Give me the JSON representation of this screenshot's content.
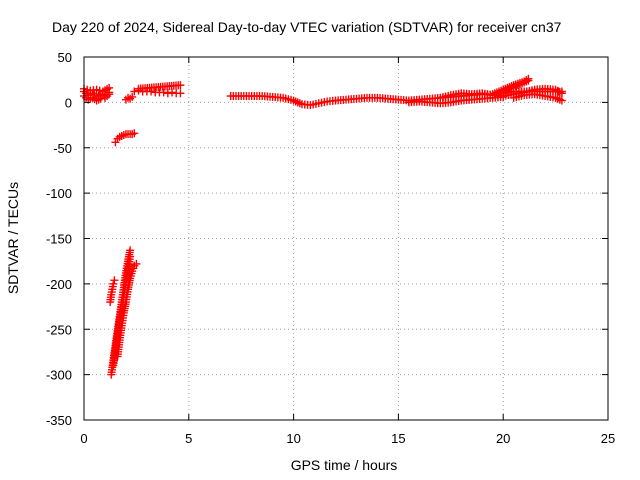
{
  "chart_data": {
    "type": "scatter",
    "title": "Day 220 of 2024, Sidereal Day-to-day VTEC variation (SDTVAR) for receiver cn37",
    "xlabel": "GPS time / hours",
    "ylabel": "SDTVAR / TECUs",
    "xlim": [
      0,
      25
    ],
    "ylim": [
      -350,
      50
    ],
    "xticks": [
      0,
      5,
      10,
      15,
      20,
      25
    ],
    "yticks": [
      -350,
      -300,
      -250,
      -200,
      -150,
      -100,
      -50,
      0,
      50
    ],
    "xtick_labels": [
      "0",
      "5",
      "10",
      "15",
      "20",
      "25"
    ],
    "ytick_labels": [
      "-350",
      "-300",
      "-250",
      "-200",
      "-150",
      "-100",
      "-50",
      "0",
      "50"
    ],
    "grid": true,
    "marker": "plus",
    "colors": {
      "series": "#ff0000",
      "grid": "#a0a0a0",
      "axis": "#000000"
    },
    "segments": [
      {
        "x": [
          0.0,
          0.2,
          0.4,
          0.6,
          0.8,
          1.0,
          1.2
        ],
        "y": [
          12,
          8,
          10,
          6,
          9,
          7,
          11
        ]
      },
      {
        "x": [
          0.0,
          0.2,
          0.4,
          0.6,
          0.8,
          1.0,
          1.2
        ],
        "y": [
          7,
          3,
          5,
          2,
          4,
          5,
          9
        ]
      },
      {
        "x": [
          0.0,
          0.3,
          0.6,
          0.9,
          1.2
        ],
        "y": [
          15,
          13,
          14,
          12,
          16
        ]
      },
      {
        "x": [
          2.0,
          2.1,
          2.2,
          2.3
        ],
        "y": [
          3,
          5,
          4,
          6
        ]
      },
      {
        "x": [
          2.4,
          2.6,
          2.8,
          3.0,
          3.2,
          3.4,
          3.6,
          3.8,
          4.0,
          4.2,
          4.4,
          4.6
        ],
        "y": [
          12,
          13,
          12,
          12,
          12,
          11,
          11,
          11,
          10,
          11,
          10,
          10
        ]
      },
      {
        "x": [
          2.6,
          4.6
        ],
        "y": [
          15,
          19
        ]
      },
      {
        "x": [
          1.5,
          1.6,
          1.7,
          1.8,
          1.9,
          2.0,
          2.1,
          2.2,
          2.3,
          2.4
        ],
        "y": [
          -44,
          -40,
          -38,
          -37,
          -36,
          -35,
          -35,
          -35,
          -35,
          -34
        ]
      },
      {
        "x": [
          1.25,
          1.3,
          1.35,
          1.4,
          1.45
        ],
        "y": [
          -220,
          -212,
          -206,
          -200,
          -196
        ]
      },
      {
        "x": [
          1.3,
          1.4,
          1.5,
          1.6,
          1.7,
          1.8,
          1.9,
          2.0,
          2.1,
          2.2
        ],
        "y": [
          -300,
          -284,
          -268,
          -252,
          -236,
          -220,
          -204,
          -188,
          -175,
          -163
        ]
      },
      {
        "x": [
          1.4,
          1.5,
          1.6,
          1.7,
          1.8,
          1.9,
          2.0,
          2.1,
          2.2
        ],
        "y": [
          -290,
          -272,
          -256,
          -240,
          -226,
          -212,
          -198,
          -184,
          -170
        ]
      },
      {
        "x": [
          1.6,
          1.7,
          1.8,
          1.9,
          2.0,
          2.1,
          2.2,
          2.3,
          2.4,
          2.5
        ],
        "y": [
          -280,
          -262,
          -246,
          -232,
          -220,
          -206,
          -194,
          -186,
          -180,
          -178
        ]
      },
      {
        "x": [
          7.0,
          7.5,
          8.0,
          8.5,
          9.0,
          9.5,
          10.0,
          10.4,
          10.8,
          11.2,
          11.6,
          12.0,
          12.5,
          13.0,
          13.5,
          14.0,
          14.5,
          15.0,
          15.5,
          16.0,
          16.5,
          17.0,
          17.5,
          18.0,
          18.5,
          19.0,
          19.5,
          20.0,
          20.5,
          21.0,
          21.5,
          22.0,
          22.5,
          22.8
        ],
        "y": [
          7,
          7,
          7,
          7,
          6,
          5,
          2,
          -2,
          -3,
          -1,
          1,
          2,
          3,
          4,
          5,
          5,
          4,
          3,
          2,
          3,
          4,
          5,
          6,
          7,
          8,
          9,
          8,
          10,
          12,
          12,
          12,
          12,
          12,
          12
        ]
      },
      {
        "x": [
          15.5,
          16.0,
          16.5,
          17.0,
          17.5,
          18.0,
          18.5,
          19.0,
          19.5,
          20.0
        ],
        "y": [
          0,
          1,
          0,
          -1,
          0,
          2,
          3,
          4,
          5,
          6
        ]
      },
      {
        "x": [
          17.0,
          17.5,
          18.0,
          18.5,
          19.0,
          19.5,
          20.0,
          20.5,
          21.0,
          21.5,
          22.0,
          22.5,
          22.8
        ],
        "y": [
          5,
          8,
          10,
          9,
          10,
          8,
          7,
          9,
          11,
          14,
          15,
          14,
          10
        ]
      },
      {
        "x": [
          19.5,
          20.0,
          20.5,
          21.0,
          21.2
        ],
        "y": [
          9,
          14,
          19,
          23,
          26
        ]
      },
      {
        "x": [
          20.0,
          20.4,
          20.8,
          21.2
        ],
        "y": [
          12,
          16,
          20,
          24
        ]
      },
      {
        "x": [
          20.5,
          21.0,
          21.5,
          22.0,
          22.5,
          22.8
        ],
        "y": [
          5,
          8,
          9,
          7,
          5,
          2
        ]
      }
    ]
  }
}
